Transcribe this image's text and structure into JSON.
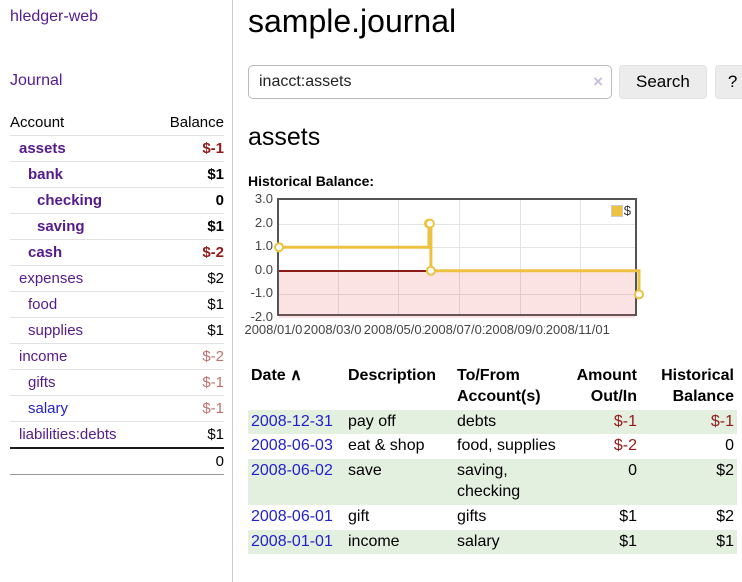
{
  "sidebar": {
    "app_title": "hledger-web",
    "nav": {
      "journal_label": "Journal"
    },
    "accounts_table": {
      "headers": {
        "account": "Account",
        "balance": "Balance"
      },
      "rows": [
        {
          "name": "assets",
          "balance": "$-1",
          "level": 1,
          "bold": true,
          "balance_tone": "neg"
        },
        {
          "name": "bank",
          "balance": "$1",
          "level": 2,
          "bold": true,
          "balance_tone": "pos"
        },
        {
          "name": "checking",
          "balance": "0",
          "level": 3,
          "bold": true,
          "balance_tone": "pos"
        },
        {
          "name": "saving",
          "balance": "$1",
          "level": 3,
          "bold": true,
          "balance_tone": "pos"
        },
        {
          "name": "cash",
          "balance": "$-2",
          "level": 2,
          "bold": true,
          "balance_tone": "neg"
        },
        {
          "name": "expenses",
          "balance": "$2",
          "level": 1,
          "bold": false,
          "balance_tone": "pos"
        },
        {
          "name": "food",
          "balance": "$1",
          "level": 2,
          "bold": false,
          "balance_tone": "pos"
        },
        {
          "name": "supplies",
          "balance": "$1",
          "level": 2,
          "bold": false,
          "balance_tone": "pos"
        },
        {
          "name": "income",
          "balance": "$-2",
          "level": 1,
          "bold": false,
          "balance_tone": "negsoft"
        },
        {
          "name": "gifts",
          "balance": "$-1",
          "level": 2,
          "bold": false,
          "balance_tone": "negsoft"
        },
        {
          "name": "salary",
          "balance": "$-1",
          "level": 2,
          "bold": false,
          "balance_tone": "negsoft",
          "link_state": "unvisited"
        },
        {
          "name": "liabilities:debts",
          "balance": "$1",
          "level": 1,
          "bold": false,
          "balance_tone": "pos"
        }
      ],
      "total": "0"
    }
  },
  "header": {
    "title": "sample.journal"
  },
  "search": {
    "value": "inacct:assets",
    "clear_icon": "×",
    "button_label": "Search",
    "help_label": "?"
  },
  "main": {
    "account_heading": "assets",
    "chart_label": "Historical Balance:"
  },
  "chart_data": {
    "type": "line",
    "step": true,
    "title": "Historical Balance:",
    "series": [
      {
        "name": "$",
        "color": "#edc240",
        "points": [
          [
            "2008-01-01",
            1
          ],
          [
            "2008-06-01",
            2
          ],
          [
            "2008-06-02",
            2
          ],
          [
            "2008-06-03",
            0
          ],
          [
            "2008-12-31",
            -1
          ]
        ]
      }
    ],
    "xrange": [
      "2008-01-01",
      "2008-12-31"
    ],
    "ylim": [
      -2,
      3
    ],
    "yticks": [
      "3.0",
      "2.0",
      "1.0",
      "0.0",
      "-1.0",
      "-2.0"
    ],
    "xticks": [
      "2008/01/01",
      "2008/03/01",
      "2008/05/01",
      "2008/07/01",
      "2008/09/01",
      "2008/11/01"
    ],
    "legend_position": "top-right",
    "grid": true,
    "negative_region": true,
    "zero_line_color": "#8c1a16"
  },
  "register_table": {
    "headers": {
      "date": "Date",
      "sort_icon": "∧",
      "description": "Description",
      "accounts": "To/From Account(s)",
      "amount": "Amount Out/In",
      "balance": "Historical Balance"
    },
    "rows": [
      {
        "date": "2008-12-31",
        "description": "pay off",
        "accounts": "debts",
        "amount": "$-1",
        "balance": "$-1",
        "amount_tone": "neg",
        "balance_tone": "neg"
      },
      {
        "date": "2008-06-03",
        "description": "eat & shop",
        "accounts": "food, supplies",
        "amount": "$-2",
        "balance": "0",
        "amount_tone": "neg",
        "balance_tone": "pos"
      },
      {
        "date": "2008-06-02",
        "description": "save",
        "accounts": "saving, checking",
        "amount": "0",
        "balance": "$2",
        "amount_tone": "pos",
        "balance_tone": "pos"
      },
      {
        "date": "2008-06-01",
        "description": "gift",
        "accounts": "gifts",
        "amount": "$1",
        "balance": "$2",
        "amount_tone": "pos",
        "balance_tone": "pos"
      },
      {
        "date": "2008-01-01",
        "description": "income",
        "accounts": "salary",
        "amount": "$1",
        "balance": "$1",
        "amount_tone": "pos",
        "balance_tone": "pos"
      }
    ]
  },
  "colors": {
    "link_purple": "#551a8b",
    "link_blue": "#2222cc",
    "negative_strong": "#941a1a",
    "negative_soft": "#c17070",
    "row_stripe_green": "#e3efdf",
    "chart_line": "#edc240",
    "chart_zero_line": "#8c1a16",
    "divider": "#cccccc"
  }
}
